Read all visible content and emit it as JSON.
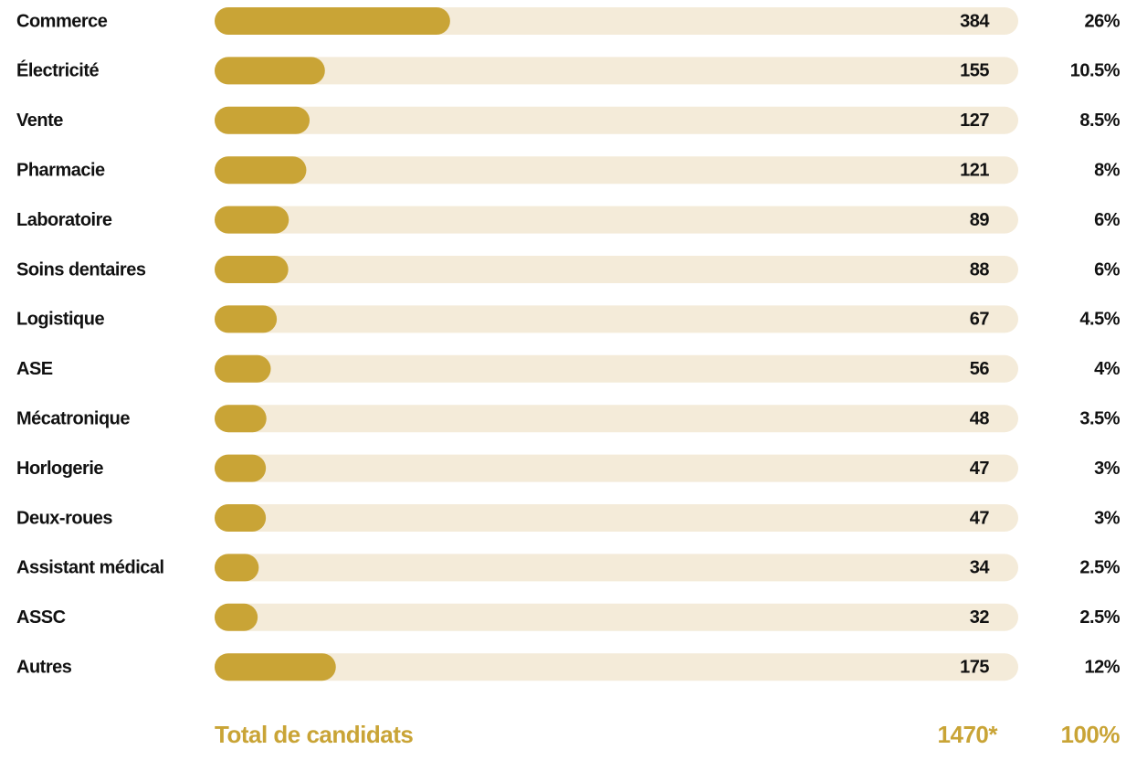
{
  "chart_data": {
    "type": "bar",
    "orientation": "horizontal",
    "categories": [
      "Commerce",
      "Électricité",
      "Vente",
      "Pharmacie",
      "Laboratoire",
      "Soins dentaires",
      "Logistique",
      "ASE",
      "Mécatronique",
      "Horlogerie",
      "Deux-roues",
      "Assistant médical",
      "ASSC",
      "Autres"
    ],
    "values": [
      384,
      155,
      127,
      121,
      89,
      88,
      67,
      56,
      48,
      47,
      47,
      34,
      32,
      175
    ],
    "shares": [
      26,
      10.5,
      8.5,
      8,
      6,
      6,
      4.5,
      4,
      3.5,
      3,
      3,
      2.5,
      2.5,
      12
    ],
    "share_labels": [
      "26%",
      "10.5%",
      "8.5%",
      "8%",
      "6%",
      "6%",
      "4.5%",
      "4%",
      "3.5%",
      "3%",
      "3%",
      "2.5%",
      "2.5%",
      "12%"
    ],
    "color": "#c9a436",
    "track_color": "#f4ebd9",
    "total": {
      "label": "Total de candidats",
      "value": 1470,
      "value_label": "1470*",
      "share": 100,
      "share_label": "100%"
    }
  }
}
